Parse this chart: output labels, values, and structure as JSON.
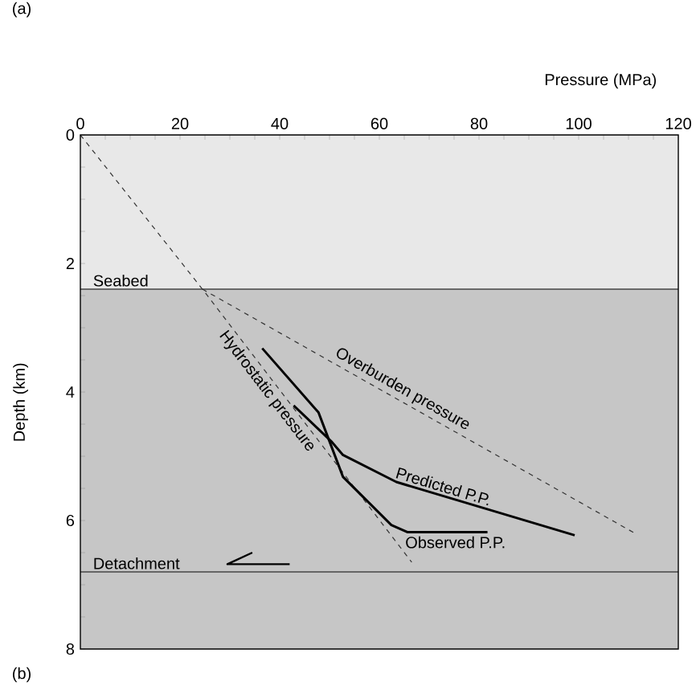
{
  "chart_data": {
    "type": "line",
    "title": "(a)",
    "xlabel": "Pressure (MPa)",
    "ylabel": "Depth (km)",
    "annotations": [
      "(b)"
    ],
    "xlim": [
      0,
      120
    ],
    "ylim": [
      8,
      0
    ],
    "xticks": [
      0,
      {
        "value": 5,
        "label": null
      },
      {
        "value": 10,
        "label": null
      },
      {
        "value": 15,
        "label": null
      },
      20,
      {
        "value": 25,
        "label": null
      },
      {
        "value": 30,
        "label": null
      },
      {
        "value": 35,
        "label": null
      },
      40,
      {
        "value": 45,
        "label": null
      },
      {
        "value": 50,
        "label": null
      },
      {
        "value": 55,
        "label": null
      },
      60,
      {
        "value": 65,
        "label": null
      },
      {
        "value": 70,
        "label": null
      },
      {
        "value": 75,
        "label": null
      },
      80,
      {
        "value": 85,
        "label": null
      },
      {
        "value": 90,
        "label": null
      },
      {
        "value": 95,
        "label": null
      },
      100,
      {
        "value": 105,
        "label": null
      },
      {
        "value": 110,
        "label": null
      },
      {
        "value": 115,
        "label": null
      },
      120
    ],
    "yticks": [
      0,
      {
        "value": 0.5,
        "label": null
      },
      {
        "value": 1,
        "label": null
      },
      {
        "value": 1.5,
        "label": null
      },
      2,
      {
        "value": 2.5,
        "label": null
      },
      {
        "value": 3,
        "label": null
      },
      {
        "value": 3.5,
        "label": null
      },
      4,
      {
        "value": 4.5,
        "label": null
      },
      {
        "value": 5,
        "label": null
      },
      {
        "value": 5.5,
        "label": null
      },
      6,
      {
        "value": 6.5,
        "label": null
      },
      {
        "value": 7,
        "label": null
      },
      {
        "value": 7.5,
        "label": null
      },
      8
    ],
    "bands": [
      {
        "axis": "y",
        "from": 0,
        "to": 2.4,
        "color": "#e8e8e8"
      },
      {
        "axis": "y",
        "from": 2.4,
        "to": 8,
        "color": "#c6c6c6"
      }
    ],
    "ref_lines": [
      {
        "axis": "y",
        "value": 2.4,
        "label": "Seabed",
        "color": "#444444"
      },
      {
        "axis": "y",
        "value": 6.8,
        "label": "Detachment",
        "color": "#444444"
      }
    ],
    "series": [
      {
        "name": "Hydrostatic pressure",
        "color": "#333333",
        "line_style": "dashed",
        "x": [
          0,
          24.5,
          66.5
        ],
        "values": [
          0,
          2.4,
          6.65
        ]
      },
      {
        "name": "Overburden pressure",
        "color": "#333333",
        "line_style": "dashed",
        "x": [
          24.5,
          111.3
        ],
        "values": [
          2.4,
          6.2
        ]
      },
      {
        "name": "Predicted P.P.",
        "color": "#000000",
        "line_style": "solid",
        "x": [
          42.8,
          50.5,
          52.7,
          63.4,
          99.2
        ],
        "values": [
          4.21,
          4.78,
          4.98,
          5.4,
          6.23
        ]
      },
      {
        "name": "Observed P.P.",
        "color": "#000000",
        "line_style": "solid",
        "x": [
          36.5,
          47.8,
          52.7,
          62.4,
          65.6,
          81.7
        ],
        "values": [
          3.32,
          4.32,
          5.32,
          6.07,
          6.18,
          6.18
        ]
      }
    ]
  }
}
